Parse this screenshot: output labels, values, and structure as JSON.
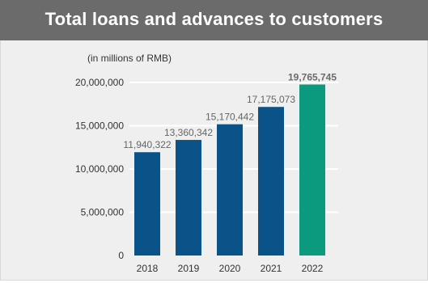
{
  "header": {
    "title": "Total loans and advances to customers"
  },
  "chart_data": {
    "type": "bar",
    "unit_label": "(in millions of RMB)",
    "categories": [
      "2018",
      "2019",
      "2020",
      "2021",
      "2022"
    ],
    "values": [
      11940322,
      13360342,
      15170442,
      17175073,
      19765745
    ],
    "value_labels": [
      "11,940,322",
      "13,360,342",
      "15,170,442",
      "17,175,073",
      "19,765,745"
    ],
    "ylim": [
      0,
      20000000
    ],
    "yticks": [
      0,
      5000000,
      10000000,
      15000000,
      20000000
    ],
    "ytick_labels": [
      "0",
      "5,000,000",
      "10,000,000",
      "15,000,000",
      "20,000,000"
    ],
    "grid": true,
    "colors": {
      "default_bar": "#0a5389",
      "highlight_bar": "#0c9a7f",
      "grid": "#ffffff"
    },
    "highlight_index": 4
  }
}
